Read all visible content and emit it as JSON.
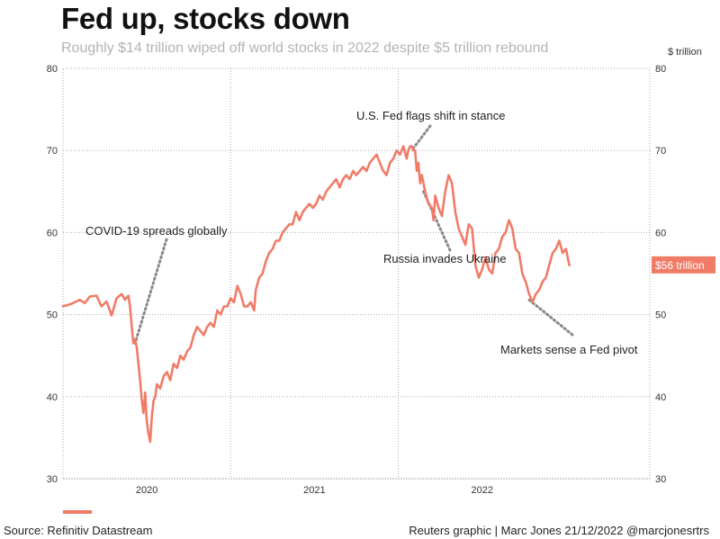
{
  "header": {
    "title": "Fed up, stocks down",
    "subtitle": "Roughly $14 trillion wiped off world stocks in 2022 despite $5 trillion rebound",
    "unit": "$ trillion"
  },
  "footer": {
    "source": "Source: Refinitiv Datastream",
    "credit": "Reuters graphic | Marc Jones 21/12/2022 @marcjonesrtrs"
  },
  "colors": {
    "series": "#f07c68",
    "grid": "#aaaaaa",
    "text": "#222222"
  },
  "chart_data": {
    "type": "line",
    "title": "Fed up, stocks down",
    "ylabel": "$ trillion",
    "ylim": [
      30,
      80
    ],
    "yticks": [
      30,
      40,
      50,
      60,
      70,
      80
    ],
    "xlim": [
      2019.5,
      2023.0
    ],
    "xticks": [
      {
        "label": "2020",
        "value": 2020.0
      },
      {
        "label": "2021",
        "value": 2021.0
      },
      {
        "label": "2022",
        "value": 2022.0
      }
    ],
    "year_boundaries": [
      2020.5,
      2021.5
    ],
    "series": [
      {
        "values": [
          [
            2019.5,
            51.0
          ],
          [
            2019.55,
            51.3
          ],
          [
            2019.6,
            51.8
          ],
          [
            2019.63,
            51.4
          ],
          [
            2019.66,
            52.2
          ],
          [
            2019.7,
            52.3
          ],
          [
            2019.73,
            51.0
          ],
          [
            2019.76,
            51.6
          ],
          [
            2019.79,
            49.9
          ],
          [
            2019.82,
            52.0
          ],
          [
            2019.85,
            52.5
          ],
          [
            2019.87,
            51.8
          ],
          [
            2019.89,
            52.3
          ],
          [
            2019.9,
            51.0
          ],
          [
            2019.91,
            48.5
          ],
          [
            2019.92,
            46.5
          ],
          [
            2019.93,
            47.0
          ],
          [
            2019.94,
            46.0
          ],
          [
            2019.95,
            44.0
          ],
          [
            2019.96,
            42.0
          ],
          [
            2019.97,
            39.5
          ],
          [
            2019.98,
            38.0
          ],
          [
            2019.99,
            40.5
          ],
          [
            2020.0,
            37.0
          ],
          [
            2020.01,
            35.5
          ],
          [
            2020.02,
            34.5
          ],
          [
            2020.03,
            37.5
          ],
          [
            2020.04,
            39.5
          ],
          [
            2020.05,
            40.0
          ],
          [
            2020.06,
            41.5
          ],
          [
            2020.08,
            41.0
          ],
          [
            2020.1,
            42.5
          ],
          [
            2020.12,
            43.0
          ],
          [
            2020.14,
            42.0
          ],
          [
            2020.16,
            44.0
          ],
          [
            2020.18,
            43.5
          ],
          [
            2020.2,
            45.0
          ],
          [
            2020.22,
            44.5
          ],
          [
            2020.24,
            45.5
          ],
          [
            2020.26,
            46.0
          ],
          [
            2020.28,
            47.5
          ],
          [
            2020.3,
            48.5
          ],
          [
            2020.32,
            48.0
          ],
          [
            2020.34,
            47.5
          ],
          [
            2020.36,
            48.5
          ],
          [
            2020.38,
            49.0
          ],
          [
            2020.4,
            48.5
          ],
          [
            2020.42,
            50.5
          ],
          [
            2020.44,
            50.0
          ],
          [
            2020.46,
            51.0
          ],
          [
            2020.48,
            51.0
          ],
          [
            2020.5,
            52.0
          ],
          [
            2020.52,
            51.5
          ],
          [
            2020.54,
            53.5
          ],
          [
            2020.56,
            52.5
          ],
          [
            2020.58,
            51.0
          ],
          [
            2020.6,
            51.0
          ],
          [
            2020.62,
            51.5
          ],
          [
            2020.64,
            50.5
          ],
          [
            2020.65,
            53.0
          ],
          [
            2020.67,
            54.5
          ],
          [
            2020.69,
            55.0
          ],
          [
            2020.71,
            56.5
          ],
          [
            2020.73,
            57.5
          ],
          [
            2020.75,
            58.0
          ],
          [
            2020.77,
            59.0
          ],
          [
            2020.79,
            59.0
          ],
          [
            2020.81,
            60.0
          ],
          [
            2020.83,
            60.5
          ],
          [
            2020.85,
            61.0
          ],
          [
            2020.87,
            61.0
          ],
          [
            2020.89,
            62.5
          ],
          [
            2020.91,
            61.5
          ],
          [
            2020.93,
            62.5
          ],
          [
            2020.95,
            63.0
          ],
          [
            2020.97,
            63.5
          ],
          [
            2020.99,
            63.0
          ],
          [
            2021.01,
            63.5
          ],
          [
            2021.03,
            64.5
          ],
          [
            2021.05,
            64.0
          ],
          [
            2021.07,
            65.0
          ],
          [
            2021.09,
            65.5
          ],
          [
            2021.11,
            66.0
          ],
          [
            2021.13,
            66.5
          ],
          [
            2021.15,
            65.5
          ],
          [
            2021.17,
            66.5
          ],
          [
            2021.19,
            67.0
          ],
          [
            2021.21,
            66.5
          ],
          [
            2021.23,
            67.5
          ],
          [
            2021.25,
            67.0
          ],
          [
            2021.27,
            67.5
          ],
          [
            2021.29,
            68.0
          ],
          [
            2021.31,
            67.5
          ],
          [
            2021.33,
            68.5
          ],
          [
            2021.35,
            69.0
          ],
          [
            2021.37,
            69.5
          ],
          [
            2021.39,
            68.5
          ],
          [
            2021.41,
            67.5
          ],
          [
            2021.43,
            67.0
          ],
          [
            2021.45,
            68.5
          ],
          [
            2021.47,
            69.0
          ],
          [
            2021.49,
            70.0
          ],
          [
            2021.51,
            69.5
          ],
          [
            2021.53,
            70.5
          ],
          [
            2021.55,
            69.0
          ],
          [
            2021.56,
            70.0
          ],
          [
            2021.57,
            70.5
          ],
          [
            2021.58,
            70.5
          ],
          [
            2021.59,
            70.0
          ],
          [
            2021.6,
            70.0
          ],
          [
            2021.61,
            67.5
          ],
          [
            2021.62,
            68.5
          ],
          [
            2021.63,
            66.0
          ],
          [
            2021.64,
            67.0
          ],
          [
            2021.66,
            65.0
          ],
          [
            2021.68,
            63.5
          ],
          [
            2021.7,
            63.0
          ],
          [
            2021.71,
            61.5
          ],
          [
            2021.72,
            64.5
          ],
          [
            2021.74,
            63.0
          ],
          [
            2021.76,
            62.0
          ],
          [
            2021.78,
            65.0
          ],
          [
            2021.8,
            67.0
          ],
          [
            2021.82,
            66.0
          ],
          [
            2021.84,
            62.5
          ],
          [
            2021.86,
            60.5
          ],
          [
            2021.88,
            59.5
          ],
          [
            2021.9,
            58.5
          ],
          [
            2021.92,
            61.0
          ],
          [
            2021.94,
            60.5
          ],
          [
            2021.96,
            56.0
          ],
          [
            2021.98,
            54.5
          ],
          [
            2022.0,
            55.5
          ],
          [
            2022.02,
            57.0
          ],
          [
            2022.04,
            55.5
          ],
          [
            2022.06,
            55.0
          ],
          [
            2022.08,
            57.5
          ],
          [
            2022.1,
            58.0
          ],
          [
            2022.12,
            59.5
          ],
          [
            2022.14,
            60.0
          ],
          [
            2022.16,
            61.5
          ],
          [
            2022.18,
            60.5
          ],
          [
            2022.2,
            58.0
          ],
          [
            2022.22,
            57.5
          ],
          [
            2022.24,
            55.0
          ],
          [
            2022.26,
            54.0
          ],
          [
            2022.28,
            52.5
          ],
          [
            2022.3,
            51.5
          ],
          [
            2022.32,
            52.5
          ],
          [
            2022.34,
            53.0
          ],
          [
            2022.36,
            54.0
          ],
          [
            2022.38,
            54.5
          ],
          [
            2022.4,
            56.0
          ],
          [
            2022.42,
            57.5
          ],
          [
            2022.44,
            58.0
          ],
          [
            2022.46,
            59.0
          ],
          [
            2022.48,
            57.5
          ],
          [
            2022.5,
            58.0
          ],
          [
            2022.52,
            56.0
          ]
        ]
      }
    ],
    "end_label": "$56 trillion",
    "annotations": [
      {
        "text": "COVID-19 spreads globally",
        "point": [
          2019.93,
          46.5
        ]
      },
      {
        "text": "U.S. Fed flags shift in stance",
        "point": [
          2021.58,
          70.0
        ]
      },
      {
        "text": "Russia invades Ukraine",
        "point": [
          2021.65,
          65.0
        ]
      },
      {
        "text": "Markets sense a Fed pivot",
        "point": [
          2022.28,
          51.8
        ]
      }
    ]
  }
}
